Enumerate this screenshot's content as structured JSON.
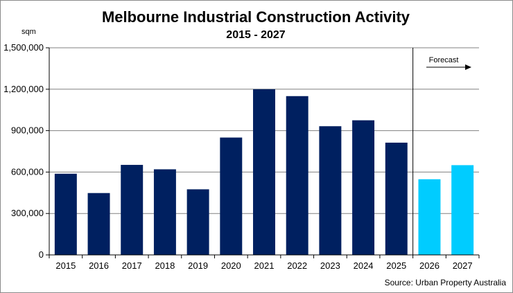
{
  "chart_data": {
    "type": "bar",
    "title": "Melbourne Industrial Construction Activity",
    "subtitle": "2015 - 2027",
    "ylabel": "sqm",
    "xlabel": "",
    "categories": [
      "2015",
      "2016",
      "2017",
      "2018",
      "2019",
      "2020",
      "2021",
      "2022",
      "2023",
      "2024",
      "2025",
      "2026",
      "2027"
    ],
    "values": [
      588000,
      448000,
      652000,
      620000,
      475000,
      850000,
      1200000,
      1150000,
      932000,
      975000,
      813000,
      548000,
      650000
    ],
    "forecast_from_index": 11,
    "ylim": [
      0,
      1500000
    ],
    "yticks": [
      0,
      300000,
      600000,
      900000,
      1200000,
      1500000
    ],
    "ytick_labels": [
      "0",
      "300,000",
      "600,000",
      "900,000",
      "1,200,000",
      "1,500,000"
    ],
    "grid": true,
    "forecast_label": "Forecast",
    "colors": {
      "actual": "#002060",
      "forecast": "#00CCFF",
      "grid": "#808080"
    }
  },
  "source": "Source: Urban Property Australia"
}
